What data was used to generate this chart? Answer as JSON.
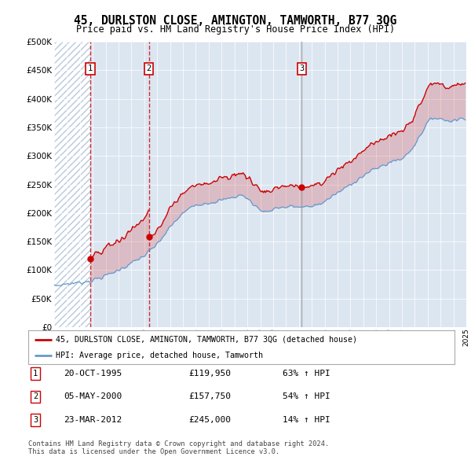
{
  "title": "45, DURLSTON CLOSE, AMINGTON, TAMWORTH, B77 3QG",
  "subtitle": "Price paid vs. HM Land Registry's House Price Index (HPI)",
  "red_line_label": "45, DURLSTON CLOSE, AMINGTON, TAMWORTH, B77 3QG (detached house)",
  "blue_line_label": "HPI: Average price, detached house, Tamworth",
  "transactions": [
    {
      "num": 1,
      "date": "20-OCT-1995",
      "price": 119950,
      "pct": "63%",
      "dir": "↑"
    },
    {
      "num": 2,
      "date": "05-MAY-2000",
      "price": 157750,
      "pct": "54%",
      "dir": "↑"
    },
    {
      "num": 3,
      "date": "23-MAR-2012",
      "price": 245000,
      "pct": "14%",
      "dir": "↑"
    }
  ],
  "transaction_years": [
    1995.8,
    2000.35,
    2012.23
  ],
  "transaction_prices": [
    119950,
    157750,
    245000
  ],
  "tx_line_styles": [
    "red_dashed",
    "red_dashed",
    "grey_solid"
  ],
  "copyright": "Contains HM Land Registry data © Crown copyright and database right 2024.\nThis data is licensed under the Open Government Licence v3.0.",
  "ylim": [
    0,
    500000
  ],
  "yticks": [
    0,
    50000,
    100000,
    150000,
    200000,
    250000,
    300000,
    350000,
    400000,
    450000,
    500000
  ],
  "background_color": "#ffffff",
  "plot_bg_color": "#dce6f1",
  "hatch_color": "#b8c8dc",
  "grid_color": "#ffffff",
  "red_color": "#cc0000",
  "blue_color": "#6699cc",
  "grey_color": "#999999",
  "title_fontsize": 11,
  "subtitle_fontsize": 9,
  "hpi_blue_keypoints": [
    [
      1993.0,
      72000
    ],
    [
      1994.0,
      76000
    ],
    [
      1995.0,
      78000
    ],
    [
      1996.0,
      82000
    ],
    [
      1997.0,
      90000
    ],
    [
      1998.0,
      100000
    ],
    [
      1999.0,
      112000
    ],
    [
      2000.0,
      125000
    ],
    [
      2001.0,
      145000
    ],
    [
      2002.0,
      175000
    ],
    [
      2003.0,
      200000
    ],
    [
      2004.0,
      215000
    ],
    [
      2005.0,
      218000
    ],
    [
      2006.0,
      222000
    ],
    [
      2007.0,
      228000
    ],
    [
      2007.5,
      232000
    ],
    [
      2008.0,
      225000
    ],
    [
      2008.5,
      215000
    ],
    [
      2009.0,
      205000
    ],
    [
      2009.5,
      202000
    ],
    [
      2010.0,
      207000
    ],
    [
      2010.5,
      210000
    ],
    [
      2011.0,
      210000
    ],
    [
      2011.5,
      212000
    ],
    [
      2012.0,
      210000
    ],
    [
      2012.5,
      210000
    ],
    [
      2013.0,
      212000
    ],
    [
      2013.5,
      215000
    ],
    [
      2014.0,
      220000
    ],
    [
      2014.5,
      228000
    ],
    [
      2015.0,
      235000
    ],
    [
      2015.5,
      242000
    ],
    [
      2016.0,
      250000
    ],
    [
      2016.5,
      258000
    ],
    [
      2017.0,
      265000
    ],
    [
      2017.5,
      272000
    ],
    [
      2018.0,
      278000
    ],
    [
      2018.5,
      283000
    ],
    [
      2019.0,
      288000
    ],
    [
      2019.5,
      292000
    ],
    [
      2020.0,
      295000
    ],
    [
      2020.5,
      305000
    ],
    [
      2021.0,
      320000
    ],
    [
      2021.5,
      340000
    ],
    [
      2022.0,
      358000
    ],
    [
      2022.5,
      368000
    ],
    [
      2023.0,
      365000
    ],
    [
      2023.5,
      362000
    ],
    [
      2024.0,
      362000
    ],
    [
      2024.5,
      365000
    ]
  ]
}
